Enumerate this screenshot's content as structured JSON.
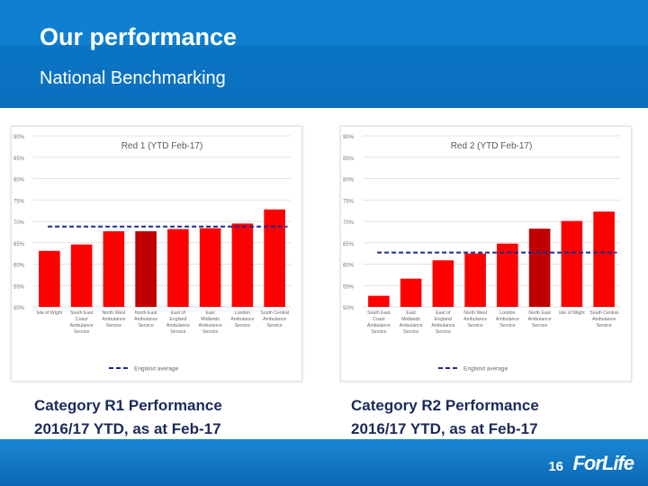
{
  "header": {
    "title": "Our performance",
    "subtitle": "National Benchmarking"
  },
  "captions": {
    "left_line1": "Category R1 Performance",
    "left_line2": "2016/17 YTD, as at Feb-17",
    "right_line1": "Category R2 Performance",
    "right_line2": "2016/17 YTD, as at Feb-17"
  },
  "footer": {
    "page_number": "16",
    "logo_text": "ForLife"
  },
  "colors": {
    "bar": "#ff0000",
    "highlight_bar": "#c00000",
    "average_line": "#1f2a8a",
    "header": "#0b6fbd"
  },
  "chart_data": [
    {
      "type": "bar",
      "title": "Red 1 (YTD Feb-17)",
      "ylim": [
        50,
        90
      ],
      "yticks": [
        "90%",
        "85%",
        "80%",
        "75%",
        "70%",
        "65%",
        "60%",
        "55%",
        "50%"
      ],
      "categories": [
        [
          "Isle of Wight"
        ],
        [
          "South East",
          "Coast",
          "Ambulance",
          "Service"
        ],
        [
          "North West",
          "Ambulance",
          "Service"
        ],
        [
          "North East",
          "Ambulance",
          "Service"
        ],
        [
          "East of",
          "England",
          "Ambulance",
          "Service"
        ],
        [
          "East",
          "Midlands",
          "Ambulance",
          "Service"
        ],
        [
          "London",
          "Ambulance",
          "Service"
        ],
        [
          "South Central",
          "Ambulance",
          "Service"
        ]
      ],
      "values": [
        63.1,
        64.6,
        67.7,
        67.7,
        68.2,
        68.4,
        69.5,
        72.8
      ],
      "highlight_index": 3,
      "average": 68.8,
      "legend": "England average"
    },
    {
      "type": "bar",
      "title": "Red 2 (YTD Feb-17)",
      "ylim": [
        50,
        90
      ],
      "yticks": [
        "90%",
        "85%",
        "80%",
        "75%",
        "70%",
        "65%",
        "60%",
        "55%",
        "50%"
      ],
      "categories": [
        [
          "South East",
          "Coast",
          "Ambulance",
          "Service"
        ],
        [
          "East",
          "Midlands",
          "Ambulance",
          "Service"
        ],
        [
          "East of",
          "England",
          "Ambulance",
          "Service"
        ],
        [
          "North West",
          "Ambulance",
          "Service"
        ],
        [
          "London",
          "Ambulance",
          "Service"
        ],
        [
          "North East",
          "Ambulance",
          "Service"
        ],
        [
          "Isle of Wight"
        ],
        [
          "South Central",
          "Ambulance",
          "Service"
        ]
      ],
      "values": [
        52.6,
        56.6,
        60.9,
        62.5,
        64.8,
        68.3,
        70.1,
        72.3
      ],
      "highlight_index": 5,
      "average": 62.7,
      "legend": "England average"
    }
  ]
}
